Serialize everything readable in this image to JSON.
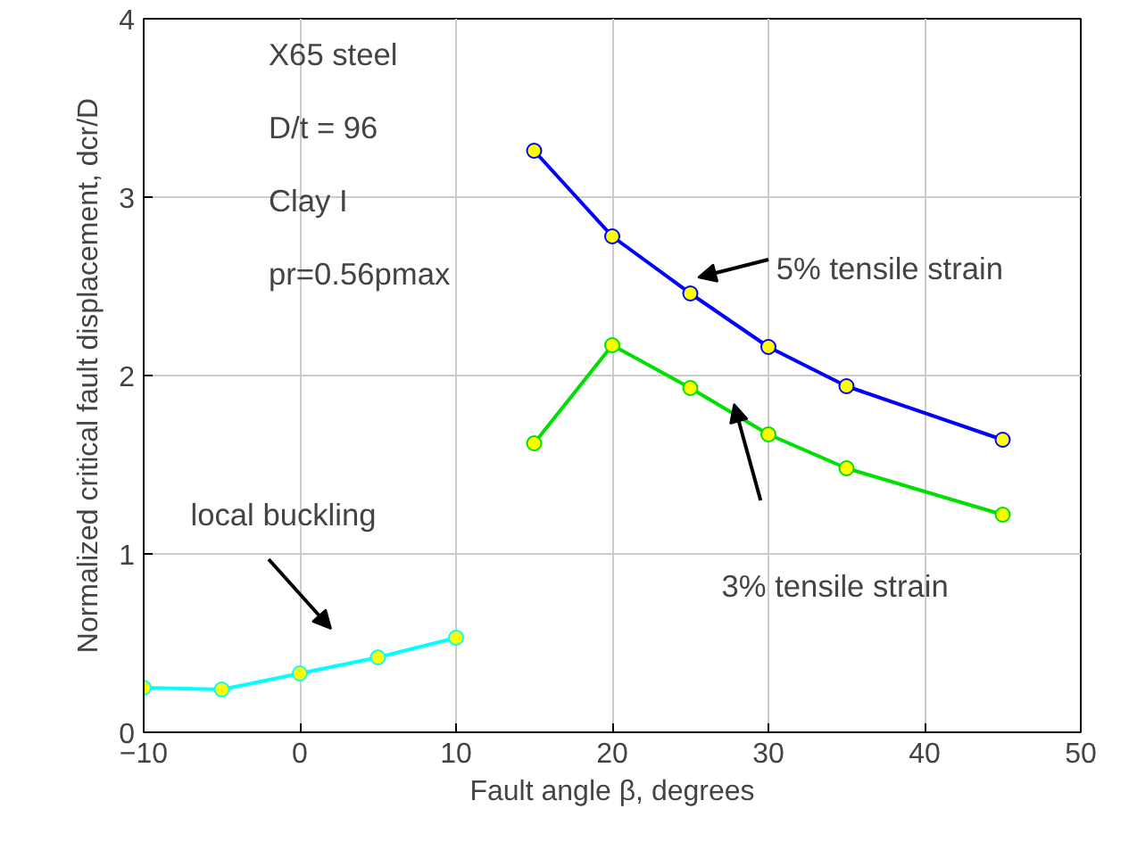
{
  "chart_data": {
    "type": "line",
    "xlabel": "Fault angle β, degrees",
    "ylabel": "Normalized critical fault displacement, dcr/D",
    "xlim": [
      -10,
      50
    ],
    "ylim": [
      0,
      4
    ],
    "xticks": [
      -10,
      0,
      10,
      20,
      30,
      40,
      50
    ],
    "yticks": [
      0,
      1,
      2,
      3,
      4
    ],
    "grid": true,
    "legend": false,
    "marker": "circle",
    "line_style": "solid",
    "annotations": [
      "X65 steel",
      "D/t = 96",
      "Clay I",
      "pr=0.56pmax"
    ],
    "series": [
      {
        "name": "5% tensile strain",
        "color": "#0000ff",
        "x": [
          15,
          20,
          25,
          30,
          35,
          45
        ],
        "values": [
          3.26,
          2.78,
          2.46,
          2.16,
          1.94,
          1.64
        ]
      },
      {
        "name": "3% tensile strain",
        "color": "#00e000",
        "x": [
          15,
          20,
          25,
          30,
          35,
          45
        ],
        "values": [
          1.62,
          2.17,
          1.93,
          1.67,
          1.48,
          1.22
        ]
      },
      {
        "name": "local buckling",
        "color": "#00ffff",
        "x": [
          -10,
          -5,
          0,
          5,
          10
        ],
        "values": [
          0.25,
          0.24,
          0.33,
          0.42,
          0.53
        ]
      }
    ]
  }
}
